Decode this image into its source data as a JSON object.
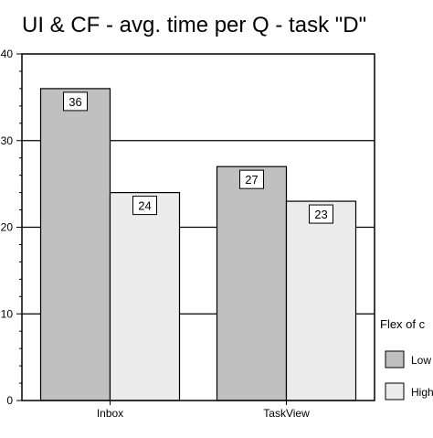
{
  "chart_data": {
    "type": "bar",
    "title": "UI & CF - avg. time per Q - task \"D\"",
    "categories": [
      "Inbox",
      "TaskView"
    ],
    "series": [
      {
        "name": "Low",
        "values": [
          36,
          27
        ],
        "labels": [
          "36",
          "27"
        ],
        "color": "#c0c0c0"
      },
      {
        "name": "High",
        "values": [
          24,
          23
        ],
        "labels": [
          "24",
          "23"
        ],
        "color": "#ececec"
      }
    ],
    "ylim": [
      0,
      40
    ],
    "y_ticks": [
      0,
      10,
      20,
      30,
      40
    ],
    "y_tick_labels": [
      "0",
      "10",
      "20",
      "30",
      "40"
    ],
    "grid": true,
    "legend": {
      "title": "Flex of c",
      "placement": "right",
      "labels": [
        "Low",
        "High"
      ]
    },
    "xlabel": "",
    "ylabel": ""
  }
}
